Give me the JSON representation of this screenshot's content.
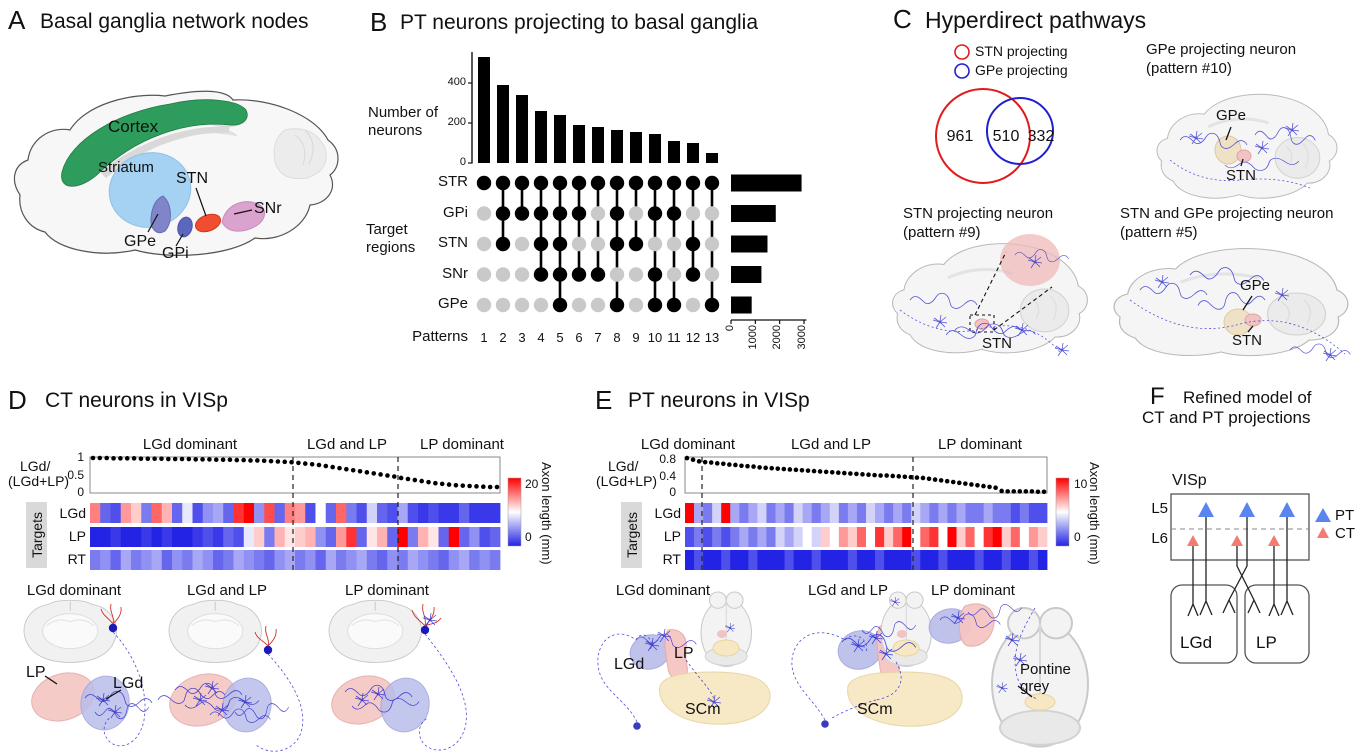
{
  "figure": {
    "panelA": {
      "label": "A",
      "title": "Basal ganglia network nodes",
      "labels": {
        "cortex": "Cortex",
        "striatum": "Striatum",
        "stn": "STN",
        "gpe": "GPe",
        "gpi": "GPi",
        "snr": "SNr"
      },
      "colors": {
        "cortex": "#2e9c5c",
        "striatum": "#a5d2f2",
        "gpe": "#7f85c8",
        "gpi": "#5b66bd",
        "stn": "#f04e30",
        "snr": "#d9a3ce"
      }
    },
    "panelB": {
      "label": "B",
      "title": "PT neurons projecting to basal ganglia",
      "ylabel_line1": "Number of",
      "ylabel_line2": "neurons",
      "rowlabel_line1": "Target",
      "rowlabel_line2": "regions",
      "xlabel": "Patterns"
    },
    "panelC": {
      "label": "C",
      "title": "Hyperdirect pathways",
      "legend": [
        {
          "label": "STN projecting",
          "color": "#e31a1c"
        },
        {
          "label": "GPe projecting",
          "color": "#2020cc"
        }
      ],
      "brains": [
        {
          "title_line1": "GPe projecting neuron",
          "title_line2": "(pattern #10)",
          "label_gpe": "GPe",
          "label_stn": "STN"
        },
        {
          "title_line1": "STN projecting neuron",
          "title_line2": "(pattern #9)",
          "label_stn": "STN"
        },
        {
          "title_line1": "STN and GPe projecting neuron",
          "title_line2": "(pattern #5)",
          "label_gpe": "GPe",
          "label_stn": "STN"
        }
      ]
    },
    "panelD": {
      "label": "D",
      "title": "CT neurons in VISp",
      "region_labels": [
        "LGd dominant",
        "LGd and LP",
        "LP dominant"
      ],
      "ylabel_line1": "LGd/",
      "ylabel_line2": "(LGd+LP)",
      "targets_label": "Targets",
      "row_labels": [
        "LGd",
        "LP",
        "RT"
      ],
      "colorbar_label": "Axon length (mm)",
      "illus_titles": [
        "LGd dominant",
        "LGd and LP",
        "LP dominant"
      ],
      "illus_labels": {
        "lp": "LP",
        "lgd": "LGd"
      }
    },
    "panelE": {
      "label": "E",
      "title": "PT neurons in VISp",
      "region_labels": [
        "LGd dominant",
        "LGd and LP",
        "LP dominant"
      ],
      "ylabel_line1": "LGd/",
      "ylabel_line2": "(LGd+LP)",
      "targets_label": "Targets",
      "row_labels": [
        "LGd",
        "LP",
        "RT"
      ],
      "colorbar_label": "Axon length (mm)",
      "illus_titles": [
        "LGd dominant",
        "LGd and LP",
        "LP dominant"
      ],
      "illus_labels": {
        "lgd": "LGd",
        "lp": "LP",
        "scm1": "SCm",
        "scm2": "SCm",
        "pontine_line1": "Pontine",
        "pontine_line2": "grey"
      }
    },
    "panelF": {
      "label": "F",
      "title_line1": "Refined model of",
      "title_line2": "CT and PT projections",
      "visp": "VISp",
      "l5": "L5",
      "l6": "L6",
      "lgd": "LGd",
      "lp": "LP",
      "legend": [
        {
          "label": "PT",
          "color": "#5a84f0"
        },
        {
          "label": "CT",
          "color": "#f57a72"
        }
      ]
    }
  },
  "chart_data": [
    {
      "id": "upset-top",
      "type": "bar",
      "title": "Number of neurons per projection pattern",
      "categories": [
        1,
        2,
        3,
        4,
        5,
        6,
        7,
        8,
        9,
        10,
        11,
        12,
        13
      ],
      "values": [
        530,
        390,
        340,
        260,
        240,
        190,
        180,
        165,
        155,
        145,
        110,
        100,
        50
      ],
      "ylabel": "Number of neurons",
      "yticks": [
        0,
        200,
        400
      ],
      "ylim": [
        0,
        560
      ]
    },
    {
      "id": "upset-matrix",
      "type": "table",
      "rows": [
        "STR",
        "GPi",
        "STN",
        "SNr",
        "GPe"
      ],
      "columns": [
        1,
        2,
        3,
        4,
        5,
        6,
        7,
        8,
        9,
        10,
        11,
        12,
        13
      ],
      "membership": [
        [
          1,
          1,
          1,
          1,
          1,
          1,
          1,
          1,
          1,
          1,
          1,
          1,
          1
        ],
        [
          0,
          1,
          1,
          1,
          1,
          1,
          0,
          1,
          0,
          1,
          1,
          0,
          0
        ],
        [
          0,
          1,
          0,
          1,
          1,
          0,
          0,
          1,
          1,
          0,
          0,
          1,
          0
        ],
        [
          0,
          0,
          0,
          1,
          1,
          1,
          1,
          0,
          0,
          1,
          0,
          1,
          0
        ],
        [
          0,
          0,
          0,
          0,
          1,
          0,
          0,
          1,
          0,
          1,
          1,
          0,
          1
        ]
      ]
    },
    {
      "id": "upset-right",
      "type": "bar",
      "orientation": "horizontal",
      "categories": [
        "STR",
        "GPi",
        "STN",
        "SNr",
        "GPe"
      ],
      "values": [
        2900,
        1840,
        1500,
        1250,
        850
      ],
      "xticks": [
        0,
        1000,
        2000,
        3000
      ],
      "xlim": [
        0,
        3100
      ]
    },
    {
      "id": "venn-hyperdirect",
      "type": "venn",
      "sets": [
        "STN projecting",
        "GPe projecting"
      ],
      "values": [
        961,
        510,
        332
      ],
      "colors": [
        "#e31a1c",
        "#2020cc"
      ]
    },
    {
      "id": "ratio-D",
      "type": "scatter",
      "ylabel": "LGd/(LGd+LP)",
      "yticks": [
        0,
        0.5,
        1
      ],
      "ylim": [
        0,
        1.03
      ],
      "region_boundaries_frac": [
        0.495,
        0.75
      ],
      "values": [
        1,
        1,
        1,
        0.99,
        0.99,
        0.99,
        0.99,
        0.98,
        0.98,
        0.98,
        0.98,
        0.97,
        0.97,
        0.97,
        0.97,
        0.96,
        0.96,
        0.96,
        0.95,
        0.95,
        0.95,
        0.94,
        0.94,
        0.93,
        0.93,
        0.92,
        0.91,
        0.9,
        0.89,
        0.88,
        0.86,
        0.84,
        0.82,
        0.8,
        0.77,
        0.74,
        0.71,
        0.68,
        0.65,
        0.62,
        0.59,
        0.56,
        0.53,
        0.5,
        0.47,
        0.43,
        0.4,
        0.37,
        0.34,
        0.31,
        0.28,
        0.26,
        0.24,
        0.22,
        0.21,
        0.2,
        0.19,
        0.18,
        0.17,
        0.17
      ]
    },
    {
      "id": "heat-D",
      "type": "heatmap",
      "rows": [
        "LGd",
        "LP",
        "RT"
      ],
      "vmin": 0,
      "vmax": 20,
      "colorbar_ticks": [
        0,
        20
      ],
      "colorbar_label": "Axon length (mm)",
      "values": {
        "LGd": [
          15,
          3,
          2,
          14,
          12,
          4,
          16,
          13,
          3,
          9,
          2,
          5,
          6,
          3,
          18,
          20,
          5,
          17,
          3,
          15,
          14,
          2,
          10,
          3,
          16,
          4,
          2,
          8,
          3,
          2,
          6,
          2,
          1,
          2,
          1,
          1,
          3,
          1,
          1,
          1
        ],
        "LP": [
          0,
          0,
          1,
          0,
          0,
          1,
          0,
          1,
          0,
          0,
          1,
          2,
          1,
          3,
          2,
          9,
          12,
          4,
          13,
          11,
          12,
          13,
          5,
          3,
          14,
          18,
          3,
          11,
          13,
          3,
          20,
          4,
          13,
          11,
          3,
          20,
          3,
          5,
          2,
          3
        ],
        "RT": [
          4,
          5,
          3,
          6,
          4,
          5,
          6,
          3,
          5,
          4,
          6,
          5,
          3,
          4,
          6,
          5,
          4,
          3,
          5,
          6,
          4,
          5,
          3,
          6,
          4,
          5,
          6,
          4,
          3,
          5,
          4,
          6,
          5,
          4,
          3,
          5,
          6,
          4,
          5,
          4
        ]
      }
    },
    {
      "id": "ratio-E",
      "type": "scatter",
      "ylabel": "LGd/(LGd+LP)",
      "yticks": [
        0,
        0.4,
        0.8
      ],
      "ylim": [
        0,
        0.89
      ],
      "region_boundaries_frac": [
        0.047,
        0.63
      ],
      "values": [
        0.86,
        0.82,
        0.78,
        0.76,
        0.75,
        0.73,
        0.72,
        0.7,
        0.69,
        0.67,
        0.66,
        0.65,
        0.63,
        0.62,
        0.61,
        0.6,
        0.59,
        0.58,
        0.57,
        0.56,
        0.55,
        0.54,
        0.53,
        0.52,
        0.51,
        0.5,
        0.49,
        0.48,
        0.47,
        0.46,
        0.45,
        0.44,
        0.43,
        0.43,
        0.42,
        0.41,
        0.4,
        0.39,
        0.38,
        0.37,
        0.35,
        0.33,
        0.31,
        0.29,
        0.27,
        0.25,
        0.23,
        0.21,
        0.19,
        0.17,
        0.15,
        0.13,
        0.05,
        0.04,
        0.04,
        0.04,
        0.04,
        0.04,
        0.03,
        0.03
      ]
    },
    {
      "id": "heat-E",
      "type": "heatmap",
      "rows": [
        "LGd",
        "LP",
        "RT"
      ],
      "vmin": 0,
      "vmax": 10,
      "colorbar_ticks": [
        0,
        10
      ],
      "colorbar_label": "Axon length (mm)",
      "values": {
        "LGd": [
          10,
          3,
          2,
          4,
          10,
          3,
          2,
          3,
          4,
          2,
          3,
          2,
          4,
          3,
          2,
          3,
          4,
          2,
          3,
          2,
          4,
          3,
          2,
          3,
          2,
          4,
          3,
          2,
          3,
          2,
          3,
          2,
          2,
          3,
          2,
          2,
          1,
          2,
          1,
          1
        ],
        "LP": [
          1,
          2,
          1,
          2,
          1,
          2,
          3,
          2,
          3,
          2,
          4,
          3,
          4,
          5,
          4,
          6,
          5,
          7,
          6,
          8,
          5,
          9,
          6,
          8,
          10,
          5,
          8,
          9,
          5,
          10,
          6,
          8,
          5,
          9,
          10,
          6,
          8,
          5,
          7,
          6
        ],
        "RT": [
          0,
          1,
          0,
          0,
          1,
          0,
          0,
          1,
          0,
          0,
          0,
          1,
          0,
          0,
          1,
          0,
          0,
          0,
          1,
          0,
          0,
          1,
          0,
          0,
          0,
          1,
          0,
          0,
          1,
          0,
          0,
          0,
          1,
          0,
          0,
          1,
          0,
          0,
          1,
          0
        ]
      }
    }
  ]
}
